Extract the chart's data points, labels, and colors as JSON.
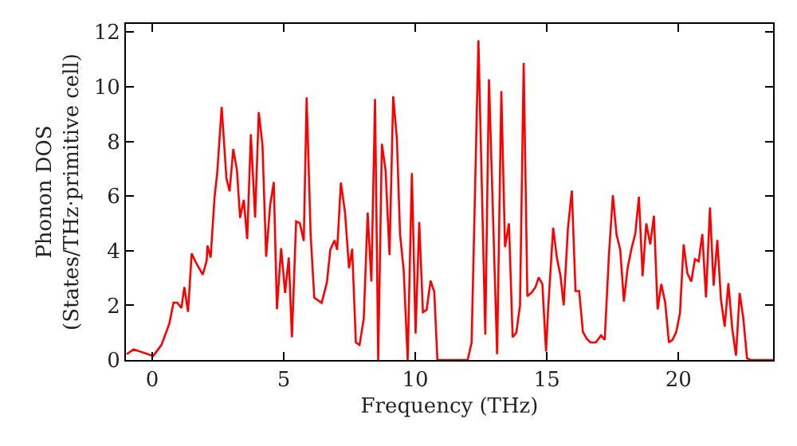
{
  "chart_data": {
    "type": "line",
    "xlabel": "Frequency (THz)",
    "ylabel": "Phonon DOS\n(States/THz·primitive cell)",
    "x": [
      -0.97,
      -0.71,
      0.04,
      0.35,
      0.65,
      0.81,
      0.95,
      1.11,
      1.22,
      1.36,
      1.5,
      1.67,
      1.92,
      2.07,
      2.1,
      2.22,
      2.37,
      2.47,
      2.64,
      2.82,
      2.94,
      3.08,
      3.22,
      3.34,
      3.48,
      3.61,
      3.75,
      3.91,
      4.05,
      4.19,
      4.33,
      4.48,
      4.62,
      4.74,
      4.9,
      5.05,
      5.19,
      5.31,
      5.47,
      5.61,
      5.76,
      5.87,
      6.02,
      6.16,
      6.44,
      6.64,
      6.77,
      6.93,
      7.03,
      7.17,
      7.33,
      7.48,
      7.6,
      7.74,
      7.88,
      8.04,
      8.19,
      8.33,
      8.47,
      8.59,
      8.73,
      8.87,
      9.02,
      9.16,
      9.3,
      9.42,
      9.56,
      9.71,
      9.87,
      10.01,
      10.15,
      10.29,
      10.43,
      10.58,
      10.72,
      10.84,
      11.99,
      12.14,
      12.4,
      12.66,
      12.8,
      13.11,
      13.27,
      13.41,
      13.56,
      13.7,
      13.84,
      13.98,
      14.12,
      14.26,
      14.42,
      14.57,
      14.69,
      14.83,
      14.97,
      15.04,
      15.24,
      15.38,
      15.52,
      15.64,
      15.8,
      15.95,
      16.09,
      16.23,
      16.37,
      16.51,
      16.66,
      16.86,
      17.06,
      17.2,
      17.36,
      17.51,
      17.65,
      17.79,
      17.93,
      18.07,
      18.21,
      18.36,
      18.5,
      18.64,
      18.78,
      18.93,
      19.07,
      19.21,
      19.35,
      19.5,
      19.64,
      19.78,
      19.92,
      20.06,
      20.2,
      20.34,
      20.49,
      20.63,
      20.77,
      20.91,
      21.05,
      21.2,
      21.34,
      21.48,
      21.62,
      21.76,
      21.9,
      22.05,
      22.19,
      22.33,
      22.47,
      22.61,
      22.74,
      23.6
    ],
    "series": [
      {
        "color": "#ff0000",
        "values": [
          0.21,
          0.39,
          0.15,
          0.55,
          1.33,
          2.1,
          2.1,
          1.9,
          2.67,
          1.76,
          3.9,
          3.55,
          3.12,
          3.64,
          4.19,
          3.75,
          5.97,
          6.84,
          9.26,
          6.65,
          6.17,
          7.72,
          6.95,
          5.2,
          5.86,
          4.43,
          8.26,
          5.21,
          9.07,
          7.87,
          3.78,
          5.65,
          6.51,
          1.86,
          4.09,
          2.45,
          3.75,
          0.83,
          5.07,
          5.01,
          4.36,
          9.61,
          4.62,
          2.28,
          2.09,
          2.84,
          4.04,
          4.38,
          4.03,
          6.49,
          5.39,
          3.36,
          4.07,
          0.64,
          0.55,
          1.51,
          5.39,
          2.87,
          9.55,
          0,
          7.91,
          6.93,
          3.84,
          9.65,
          8.1,
          4.61,
          3.26,
          0,
          6.84,
          0.97,
          5.05,
          1.75,
          1.83,
          2.9,
          2.5,
          0,
          0,
          0.64,
          11.7,
          0.93,
          10.27,
          0.21,
          9.84,
          4.13,
          5.0,
          0.83,
          1.0,
          2.0,
          10.87,
          2.33,
          2.47,
          2.67,
          3.02,
          2.78,
          0.31,
          1.72,
          4.84,
          3.75,
          3.07,
          2.0,
          4.81,
          6.2,
          2.52,
          2.52,
          1.03,
          0.79,
          0.64,
          0.64,
          0.9,
          0.74,
          3.84,
          6.03,
          4.58,
          4.04,
          2.14,
          3.36,
          4.04,
          4.61,
          5.97,
          3.07,
          5.0,
          4.23,
          5.28,
          1.85,
          2.78,
          2.09,
          0.64,
          0.74,
          1.03,
          1.72,
          4.23,
          3.17,
          2.87,
          3.69,
          3.61,
          4.61,
          2.29,
          5.58,
          2.72,
          4.39,
          2.2,
          1.22,
          2.81,
          1.13,
          0.16,
          2.45,
          1.51,
          0.06,
          0,
          0
        ]
      }
    ],
    "xlim": [
      -1,
      23.6
    ],
    "ylim": [
      0,
      12.3
    ],
    "xticks": [
      0,
      5,
      10,
      15,
      20
    ],
    "yticks": [
      0,
      2,
      4,
      6,
      8,
      10,
      12
    ],
    "marker": "none",
    "line_style": "solid"
  }
}
